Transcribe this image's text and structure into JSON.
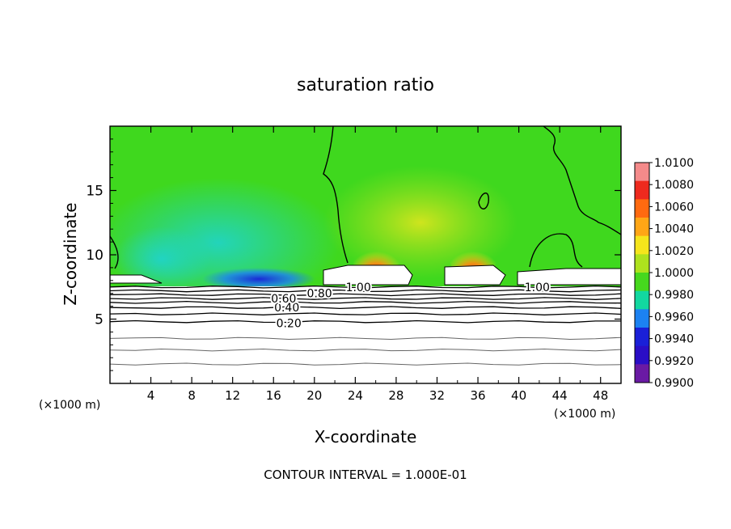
{
  "chart_data": {
    "type": "heatmap",
    "title": "saturation ratio",
    "xlabel": "X-coordinate",
    "ylabel": "Z-coordinate",
    "x_unit": "(×1000 m)",
    "x_unit_right": "(×1000 m)",
    "xlim": [
      0,
      50
    ],
    "ylim": [
      0,
      20
    ],
    "x_ticks": [
      4,
      8,
      12,
      16,
      20,
      24,
      28,
      32,
      36,
      40,
      44,
      48
    ],
    "y_ticks": [
      5,
      10,
      15
    ],
    "x_tick_labels": [
      "4",
      "8",
      "12",
      "16",
      "20",
      "24",
      "28",
      "32",
      "36",
      "40",
      "44",
      "48"
    ],
    "y_tick_labels": [
      "5",
      "10",
      "15"
    ],
    "contour_interval_text": "CONTOUR INTERVAL = 1.000E-01",
    "contour_labels": [
      {
        "text": "0.20",
        "x": 17.5,
        "z": 4.7
      },
      {
        "text": "0.40",
        "x": 17.3,
        "z": 5.9
      },
      {
        "text": "0.60",
        "x": 17.0,
        "z": 6.6
      },
      {
        "text": "0.80",
        "x": 20.5,
        "z": 7.0
      },
      {
        "text": "1.00",
        "x": 24.3,
        "z": 7.5
      },
      {
        "text": "1.00",
        "x": 41.8,
        "z": 7.5
      }
    ],
    "colorbar": {
      "min": 0.99,
      "max": 1.01,
      "labels": [
        "1.0100",
        "1.0080",
        "1.0060",
        "1.0040",
        "1.0020",
        "1.0000",
        "0.9980",
        "0.9960",
        "0.9940",
        "0.9920",
        "0.9900"
      ],
      "colors": [
        "#f48a8a",
        "#ee2a1e",
        "#ff6a10",
        "#ffa616",
        "#f5e51c",
        "#aee21e",
        "#46d81e",
        "#12d8a0",
        "#1c82f2",
        "#1a20d8",
        "#2a0ec6",
        "#6a1aa4"
      ]
    },
    "low_contours_z": [
      1.5,
      2.6,
      3.5,
      4.8,
      5.4,
      5.9,
      6.3,
      6.6,
      6.9,
      7.2,
      7.5
    ]
  }
}
